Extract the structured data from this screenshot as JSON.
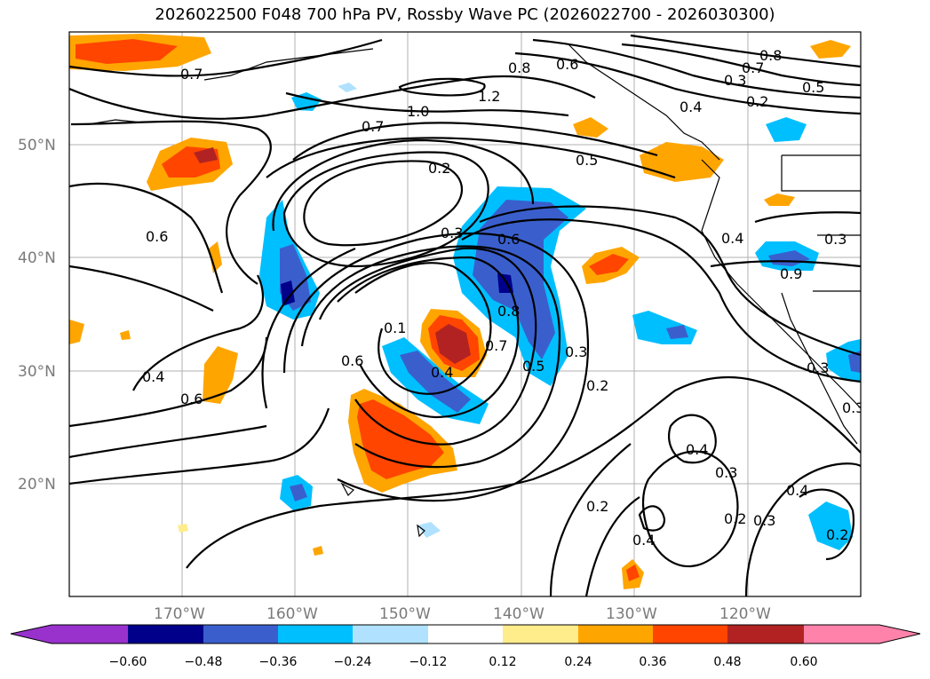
{
  "title": "2026022500 F048 700 hPa PV, Rossby Wave PC (2026022700 - 2026030300)",
  "map": {
    "lat_labels": [
      "50°N",
      "40°N",
      "30°N",
      "20°N"
    ],
    "lon_labels": [
      "170°W",
      "160°W",
      "150°W",
      "140°W",
      "130°W",
      "120°W"
    ],
    "contour_labels": [
      "0.7",
      "0.8",
      "0.6",
      "0.8",
      "0.7",
      "1.2",
      "1.0",
      "0.7",
      "0.3",
      "0.4",
      "0.5",
      "0.2",
      "0.5",
      "0.2",
      "0.6",
      "0.3",
      "0.6",
      "0.4",
      "0.4",
      "0.9",
      "0.3",
      "0.1",
      "0.6",
      "0.8",
      "0.4",
      "0.7",
      "0.5",
      "0.3",
      "0.2",
      "0.6",
      "0.4",
      "0.4",
      "0.3",
      "0.2",
      "0.4",
      "0.2",
      "0.3",
      "0.3",
      "0.3",
      "0.2"
    ]
  },
  "colorbar": {
    "ticks": [
      "−0.60",
      "−0.48",
      "−0.36",
      "−0.24",
      "−0.12",
      "0.12",
      "0.24",
      "0.36",
      "0.48",
      "0.60"
    ],
    "colors": {
      "below": "#9932cc",
      "n060": "#00008b",
      "n048": "#3a5fcd",
      "n036": "#00bfff",
      "n024": "#b0e2ff",
      "zero": "#ffffff",
      "p012": "#ffec8b",
      "p024": "#ffa500",
      "p036": "#ff4500",
      "p048": "#b22222",
      "above": "#ff82ab"
    }
  }
}
